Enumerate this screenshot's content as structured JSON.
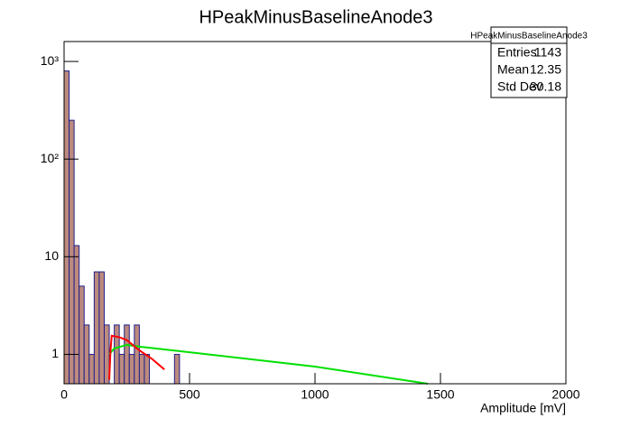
{
  "chart_data": {
    "type": "histogram",
    "title": "HPeakMinusBaselineAnode3",
    "x_label": "Amplitude [mV]",
    "bins": [
      0,
      20,
      40,
      60,
      80,
      100,
      120,
      140,
      160,
      180,
      200,
      220,
      240,
      260,
      280,
      300,
      320,
      340,
      360,
      380,
      400,
      420,
      440,
      460
    ],
    "counts": [
      800,
      250,
      13,
      5,
      2,
      1,
      7,
      7,
      2,
      0,
      2,
      1,
      2,
      1,
      2,
      1,
      1,
      0,
      0,
      0,
      0,
      0,
      1
    ],
    "color": "#bc8a7e",
    "edge_color": "#20208a",
    "xlim": [
      0,
      2000
    ],
    "xticks": [
      0,
      500,
      1000,
      1500,
      2000
    ],
    "ylim": [
      0.5,
      1600
    ],
    "log_y": true,
    "yticks": [
      1,
      10,
      {
        "value": 100,
        "label": "10²"
      },
      {
        "value": 1000,
        "label": "10³"
      }
    ],
    "lines": [
      {
        "color": "#00e000",
        "x": [
          180,
          200,
          250,
          300,
          500,
          1000,
          1450
        ],
        "y": [
          1.0,
          1.15,
          1.25,
          1.2,
          1.05,
          0.75,
          0.5
        ]
      },
      {
        "color": "#ff0000",
        "x": [
          180,
          185,
          190,
          220,
          250,
          300,
          350,
          400
        ],
        "y": [
          0.55,
          1.1,
          1.55,
          1.5,
          1.4,
          1.1,
          0.9,
          0.7
        ]
      }
    ],
    "stats": {
      "title": "HPeakMinusBaselineAnode3",
      "rows": [
        [
          "Entries",
          1143
        ],
        [
          "Mean",
          12.35
        ],
        [
          "Std Dev",
          30.18
        ]
      ]
    }
  }
}
